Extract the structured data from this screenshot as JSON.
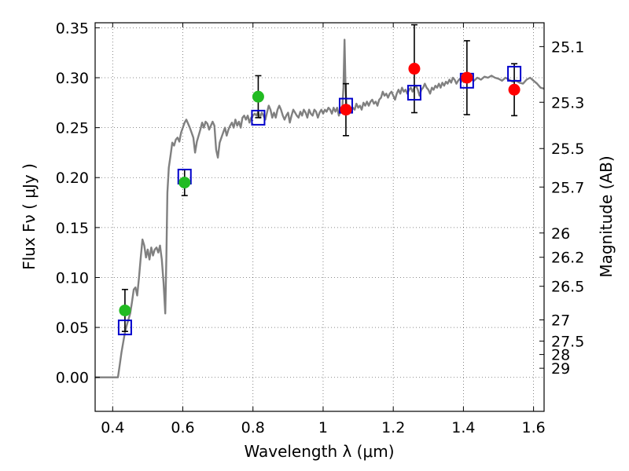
{
  "chart_data": {
    "type": "scatter",
    "xlabel": "Wavelength  λ (μm)",
    "ylabel": "Flux  Fν  ( μJy )",
    "y2label": "Magnitude (AB)",
    "xlim": [
      0.35,
      1.63
    ],
    "ylim": [
      -0.034,
      0.355
    ],
    "grid": true,
    "x_ticks": [
      {
        "value": 0.4,
        "label": "0.4"
      },
      {
        "value": 0.6,
        "label": "0.6"
      },
      {
        "value": 0.8,
        "label": "0.8"
      },
      {
        "value": 1.0,
        "label": "1"
      },
      {
        "value": 1.2,
        "label": "1.2"
      },
      {
        "value": 1.4,
        "label": "1.4"
      },
      {
        "value": 1.6,
        "label": "1.6"
      }
    ],
    "y_ticks": [
      {
        "value": 0.0,
        "label": "0.00"
      },
      {
        "value": 0.05,
        "label": "0.05"
      },
      {
        "value": 0.1,
        "label": "0.10"
      },
      {
        "value": 0.15,
        "label": "0.15"
      },
      {
        "value": 0.2,
        "label": "0.20"
      },
      {
        "value": 0.25,
        "label": "0.25"
      },
      {
        "value": 0.3,
        "label": "0.30"
      },
      {
        "value": 0.35,
        "label": "0.35"
      }
    ],
    "y2_ticks": [
      {
        "mag": 25.1,
        "label": "25.1"
      },
      {
        "mag": 25.3,
        "label": "25.3"
      },
      {
        "mag": 25.5,
        "label": "25.5"
      },
      {
        "mag": 25.7,
        "label": "25.7"
      },
      {
        "mag": 26.0,
        "label": "26"
      },
      {
        "mag": 26.2,
        "label": "26.2"
      },
      {
        "mag": 26.5,
        "label": "26.5"
      },
      {
        "mag": 27.0,
        "label": "27"
      },
      {
        "mag": 27.5,
        "label": "27.5"
      },
      {
        "mag": 28.0,
        "label": "28"
      },
      {
        "mag": 29.0,
        "label": "29"
      }
    ],
    "series": [
      {
        "kind": "line",
        "color": "#808080",
        "points": [
          [
            0.35,
            0.0
          ],
          [
            0.4,
            0.0
          ],
          [
            0.415,
            0.0
          ],
          [
            0.42,
            0.012
          ],
          [
            0.425,
            0.025
          ],
          [
            0.43,
            0.035
          ],
          [
            0.435,
            0.045
          ],
          [
            0.44,
            0.052
          ],
          [
            0.445,
            0.058
          ],
          [
            0.45,
            0.064
          ],
          [
            0.455,
            0.075
          ],
          [
            0.46,
            0.088
          ],
          [
            0.465,
            0.09
          ],
          [
            0.47,
            0.082
          ],
          [
            0.475,
            0.1
          ],
          [
            0.48,
            0.12
          ],
          [
            0.485,
            0.138
          ],
          [
            0.49,
            0.132
          ],
          [
            0.495,
            0.12
          ],
          [
            0.5,
            0.128
          ],
          [
            0.505,
            0.118
          ],
          [
            0.51,
            0.13
          ],
          [
            0.515,
            0.122
          ],
          [
            0.52,
            0.128
          ],
          [
            0.525,
            0.13
          ],
          [
            0.53,
            0.125
          ],
          [
            0.535,
            0.132
          ],
          [
            0.54,
            0.118
          ],
          [
            0.545,
            0.095
          ],
          [
            0.55,
            0.064
          ],
          [
            0.553,
            0.12
          ],
          [
            0.556,
            0.185
          ],
          [
            0.56,
            0.21
          ],
          [
            0.565,
            0.222
          ],
          [
            0.57,
            0.235
          ],
          [
            0.575,
            0.232
          ],
          [
            0.58,
            0.238
          ],
          [
            0.585,
            0.24
          ],
          [
            0.59,
            0.236
          ],
          [
            0.595,
            0.245
          ],
          [
            0.6,
            0.25
          ],
          [
            0.605,
            0.255
          ],
          [
            0.61,
            0.258
          ],
          [
            0.615,
            0.254
          ],
          [
            0.62,
            0.25
          ],
          [
            0.625,
            0.245
          ],
          [
            0.63,
            0.24
          ],
          [
            0.635,
            0.225
          ],
          [
            0.64,
            0.236
          ],
          [
            0.645,
            0.242
          ],
          [
            0.65,
            0.248
          ],
          [
            0.655,
            0.255
          ],
          [
            0.66,
            0.25
          ],
          [
            0.665,
            0.256
          ],
          [
            0.67,
            0.254
          ],
          [
            0.675,
            0.248
          ],
          [
            0.68,
            0.252
          ],
          [
            0.685,
            0.256
          ],
          [
            0.69,
            0.252
          ],
          [
            0.695,
            0.228
          ],
          [
            0.7,
            0.22
          ],
          [
            0.705,
            0.235
          ],
          [
            0.71,
            0.24
          ],
          [
            0.715,
            0.245
          ],
          [
            0.72,
            0.25
          ],
          [
            0.725,
            0.242
          ],
          [
            0.73,
            0.248
          ],
          [
            0.735,
            0.252
          ],
          [
            0.74,
            0.255
          ],
          [
            0.745,
            0.25
          ],
          [
            0.75,
            0.258
          ],
          [
            0.755,
            0.252
          ],
          [
            0.76,
            0.256
          ],
          [
            0.765,
            0.25
          ],
          [
            0.77,
            0.26
          ],
          [
            0.775,
            0.262
          ],
          [
            0.78,
            0.258
          ],
          [
            0.785,
            0.262
          ],
          [
            0.79,
            0.255
          ],
          [
            0.795,
            0.26
          ],
          [
            0.8,
            0.262
          ],
          [
            0.805,
            0.264
          ],
          [
            0.81,
            0.262
          ],
          [
            0.815,
            0.266
          ],
          [
            0.82,
            0.26
          ],
          [
            0.825,
            0.265
          ],
          [
            0.83,
            0.262
          ],
          [
            0.835,
            0.258
          ],
          [
            0.84,
            0.265
          ],
          [
            0.845,
            0.272
          ],
          [
            0.85,
            0.268
          ],
          [
            0.855,
            0.26
          ],
          [
            0.86,
            0.265
          ],
          [
            0.865,
            0.26
          ],
          [
            0.87,
            0.268
          ],
          [
            0.875,
            0.272
          ],
          [
            0.88,
            0.268
          ],
          [
            0.885,
            0.262
          ],
          [
            0.89,
            0.258
          ],
          [
            0.895,
            0.262
          ],
          [
            0.9,
            0.265
          ],
          [
            0.905,
            0.255
          ],
          [
            0.91,
            0.262
          ],
          [
            0.915,
            0.268
          ],
          [
            0.92,
            0.265
          ],
          [
            0.925,
            0.262
          ],
          [
            0.93,
            0.26
          ],
          [
            0.935,
            0.266
          ],
          [
            0.94,
            0.262
          ],
          [
            0.945,
            0.268
          ],
          [
            0.95,
            0.265
          ],
          [
            0.955,
            0.26
          ],
          [
            0.96,
            0.268
          ],
          [
            0.965,
            0.264
          ],
          [
            0.97,
            0.262
          ],
          [
            0.975,
            0.268
          ],
          [
            0.98,
            0.266
          ],
          [
            0.985,
            0.26
          ],
          [
            0.99,
            0.265
          ],
          [
            0.995,
            0.268
          ],
          [
            1.0,
            0.264
          ],
          [
            1.005,
            0.268
          ],
          [
            1.01,
            0.266
          ],
          [
            1.015,
            0.27
          ],
          [
            1.02,
            0.268
          ],
          [
            1.025,
            0.264
          ],
          [
            1.03,
            0.27
          ],
          [
            1.035,
            0.266
          ],
          [
            1.04,
            0.27
          ],
          [
            1.045,
            0.262
          ],
          [
            1.05,
            0.268
          ],
          [
            1.055,
            0.272
          ],
          [
            1.058,
            0.29
          ],
          [
            1.061,
            0.338
          ],
          [
            1.064,
            0.29
          ],
          [
            1.067,
            0.27
          ],
          [
            1.07,
            0.268
          ],
          [
            1.075,
            0.272
          ],
          [
            1.08,
            0.266
          ],
          [
            1.085,
            0.27
          ],
          [
            1.09,
            0.268
          ],
          [
            1.095,
            0.274
          ],
          [
            1.1,
            0.27
          ],
          [
            1.105,
            0.272
          ],
          [
            1.11,
            0.268
          ],
          [
            1.115,
            0.275
          ],
          [
            1.12,
            0.272
          ],
          [
            1.125,
            0.276
          ],
          [
            1.13,
            0.272
          ],
          [
            1.135,
            0.276
          ],
          [
            1.14,
            0.278
          ],
          [
            1.145,
            0.274
          ],
          [
            1.15,
            0.276
          ],
          [
            1.155,
            0.272
          ],
          [
            1.16,
            0.278
          ],
          [
            1.165,
            0.28
          ],
          [
            1.17,
            0.286
          ],
          [
            1.175,
            0.282
          ],
          [
            1.18,
            0.284
          ],
          [
            1.185,
            0.28
          ],
          [
            1.19,
            0.284
          ],
          [
            1.195,
            0.286
          ],
          [
            1.2,
            0.282
          ],
          [
            1.205,
            0.278
          ],
          [
            1.21,
            0.284
          ],
          [
            1.215,
            0.288
          ],
          [
            1.22,
            0.284
          ],
          [
            1.225,
            0.29
          ],
          [
            1.23,
            0.286
          ],
          [
            1.235,
            0.288
          ],
          [
            1.24,
            0.284
          ],
          [
            1.245,
            0.288
          ],
          [
            1.25,
            0.29
          ],
          [
            1.255,
            0.286
          ],
          [
            1.26,
            0.29
          ],
          [
            1.265,
            0.292
          ],
          [
            1.27,
            0.288
          ],
          [
            1.275,
            0.282
          ],
          [
            1.28,
            0.288
          ],
          [
            1.285,
            0.29
          ],
          [
            1.29,
            0.294
          ],
          [
            1.295,
            0.29
          ],
          [
            1.3,
            0.288
          ],
          [
            1.305,
            0.284
          ],
          [
            1.31,
            0.29
          ],
          [
            1.315,
            0.288
          ],
          [
            1.32,
            0.292
          ],
          [
            1.325,
            0.29
          ],
          [
            1.33,
            0.294
          ],
          [
            1.335,
            0.29
          ],
          [
            1.34,
            0.295
          ],
          [
            1.345,
            0.292
          ],
          [
            1.35,
            0.296
          ],
          [
            1.355,
            0.294
          ],
          [
            1.36,
            0.298
          ],
          [
            1.365,
            0.295
          ],
          [
            1.37,
            0.3
          ],
          [
            1.375,
            0.298
          ],
          [
            1.38,
            0.294
          ],
          [
            1.385,
            0.297
          ],
          [
            1.39,
            0.299
          ],
          [
            1.395,
            0.296
          ],
          [
            1.4,
            0.298
          ],
          [
            1.41,
            0.295
          ],
          [
            1.42,
            0.299
          ],
          [
            1.43,
            0.297
          ],
          [
            1.44,
            0.3
          ],
          [
            1.45,
            0.298
          ],
          [
            1.46,
            0.301
          ],
          [
            1.47,
            0.3
          ],
          [
            1.48,
            0.302
          ],
          [
            1.49,
            0.3
          ],
          [
            1.5,
            0.299
          ],
          [
            1.51,
            0.297
          ],
          [
            1.52,
            0.3
          ],
          [
            1.53,
            0.298
          ],
          [
            1.54,
            0.296
          ],
          [
            1.55,
            0.297
          ],
          [
            1.56,
            0.295
          ],
          [
            1.57,
            0.294
          ],
          [
            1.58,
            0.298
          ],
          [
            1.59,
            0.3
          ],
          [
            1.6,
            0.297
          ],
          [
            1.61,
            0.294
          ],
          [
            1.62,
            0.29
          ],
          [
            1.63,
            0.289
          ]
        ]
      },
      {
        "kind": "squares",
        "color": "#0000cc",
        "points": [
          [
            0.435,
            0.05
          ],
          [
            0.605,
            0.201
          ],
          [
            0.815,
            0.26
          ],
          [
            1.065,
            0.272
          ],
          [
            1.26,
            0.285
          ],
          [
            1.41,
            0.297
          ],
          [
            1.545,
            0.304
          ]
        ]
      },
      {
        "kind": "dots_with_errors",
        "color": "#22bb22",
        "points": [
          {
            "x": 0.435,
            "y": 0.067,
            "yerr": 0.021
          },
          {
            "x": 0.605,
            "y": 0.195,
            "yerr": 0.013
          },
          {
            "x": 0.815,
            "y": 0.281,
            "yerr": 0.021
          }
        ]
      },
      {
        "kind": "dots_with_errors",
        "color": "#ff0000",
        "points": [
          {
            "x": 1.065,
            "y": 0.268,
            "yerr": 0.026
          },
          {
            "x": 1.26,
            "y": 0.309,
            "yerr": 0.044
          },
          {
            "x": 1.41,
            "y": 0.3,
            "yerr": 0.037
          },
          {
            "x": 1.545,
            "y": 0.288,
            "yerr": 0.026
          }
        ]
      }
    ]
  }
}
